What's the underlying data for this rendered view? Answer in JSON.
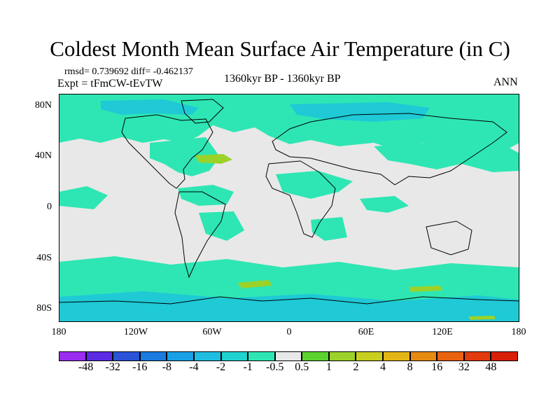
{
  "title": "Coldest Month Mean Surface Air Temperature (in C)",
  "stats": "rmsd= 0.739692 diff= -0.462137",
  "experiment": "Expt = tFmCW-tEvTW",
  "period": "1360kyr BP - 1360kyr BP",
  "season": "ANN",
  "lat_labels": [
    "80N",
    "40N",
    "0",
    "40S",
    "80S"
  ],
  "lon_labels": [
    "180",
    "120W",
    "60W",
    "0",
    "60E",
    "120E",
    "180"
  ],
  "colorbar": {
    "labels": [
      "-48",
      "-32",
      "-16",
      "-8",
      "-4",
      "-2",
      "-1",
      "-0.5",
      "0.5",
      "1",
      "2",
      "4",
      "8",
      "16",
      "32",
      "48"
    ],
    "colors": [
      "#9a2ef0",
      "#5a2be3",
      "#2b53d8",
      "#1b7bdf",
      "#1aa0e6",
      "#20bde2",
      "#1fd1cf",
      "#2ee6b3",
      "#e8e8e8",
      "#5bd22e",
      "#9bd22a",
      "#c8cf1f",
      "#e3b514",
      "#e68a12",
      "#e8620f",
      "#e23a0c",
      "#d81f08"
    ]
  },
  "colors": {
    "background_field": "#e8e8e8",
    "cool_anomaly": "#2ee6b3",
    "cold_anomaly": "#1fc9d6",
    "warm_anomaly": "#9bd22a",
    "coastline": "#000000"
  }
}
